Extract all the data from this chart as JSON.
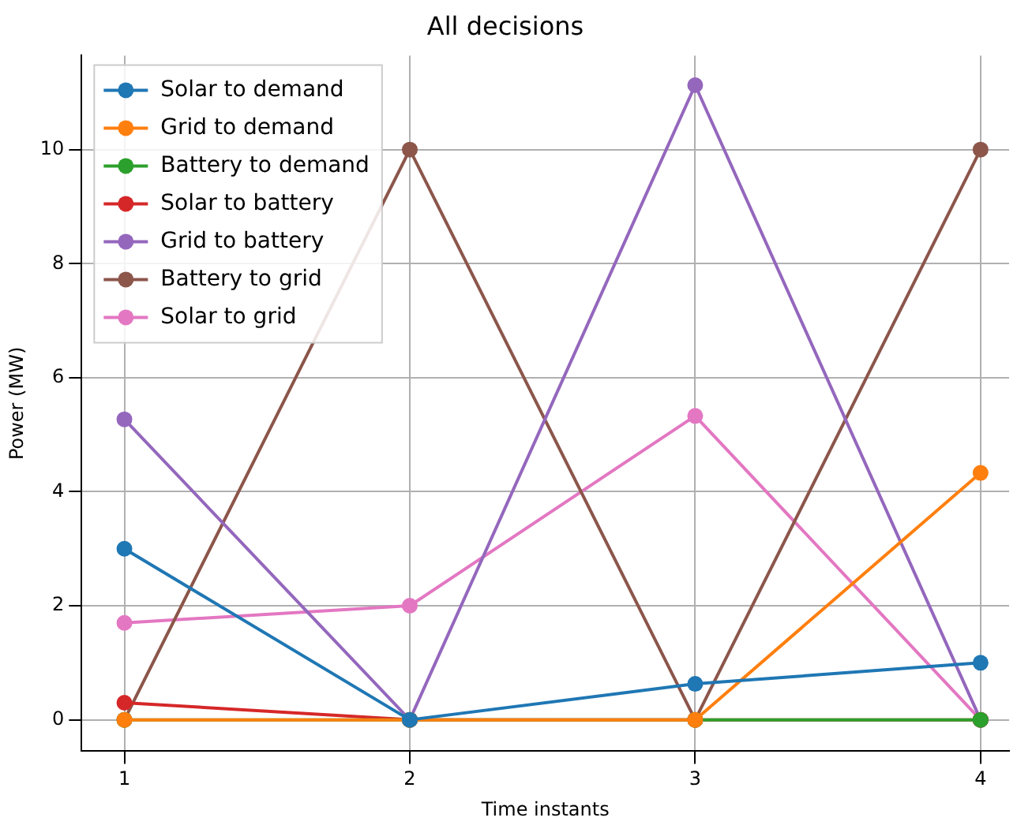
{
  "chart_data": {
    "type": "line",
    "title": "All decisions",
    "xlabel": "Time instants",
    "ylabel": "Power (MW)",
    "x": [
      1,
      2,
      3,
      4
    ],
    "xlim": [
      0.85,
      4.1
    ],
    "xticks": [
      1,
      2,
      3,
      4
    ],
    "ylim": [
      -0.55,
      11.65
    ],
    "yticks": [
      0,
      2,
      4,
      6,
      8,
      10
    ],
    "grid": true,
    "legend": "top left",
    "marker": "circle",
    "line_style": "solid",
    "series": [
      {
        "name": "Solar to demand",
        "color": "#1f77b4",
        "values": [
          3.0,
          0,
          0.63,
          1.0
        ]
      },
      {
        "name": "Grid to demand",
        "color": "#ff7f0e",
        "values": [
          0,
          0,
          0,
          4.33
        ]
      },
      {
        "name": "Battery to demand",
        "color": "#2ca02c",
        "values": [
          0,
          0,
          0,
          0
        ]
      },
      {
        "name": "Solar to battery",
        "color": "#d62728",
        "values": [
          0.3,
          0,
          0,
          0
        ]
      },
      {
        "name": "Grid to battery",
        "color": "#9467bd",
        "values": [
          5.27,
          0,
          11.13,
          0
        ]
      },
      {
        "name": "Battery to grid",
        "color": "#8c564b",
        "values": [
          0,
          10,
          0,
          10
        ]
      },
      {
        "name": "Solar to grid",
        "color": "#e377c2",
        "values": [
          1.7,
          2.0,
          5.33,
          0
        ]
      }
    ]
  }
}
